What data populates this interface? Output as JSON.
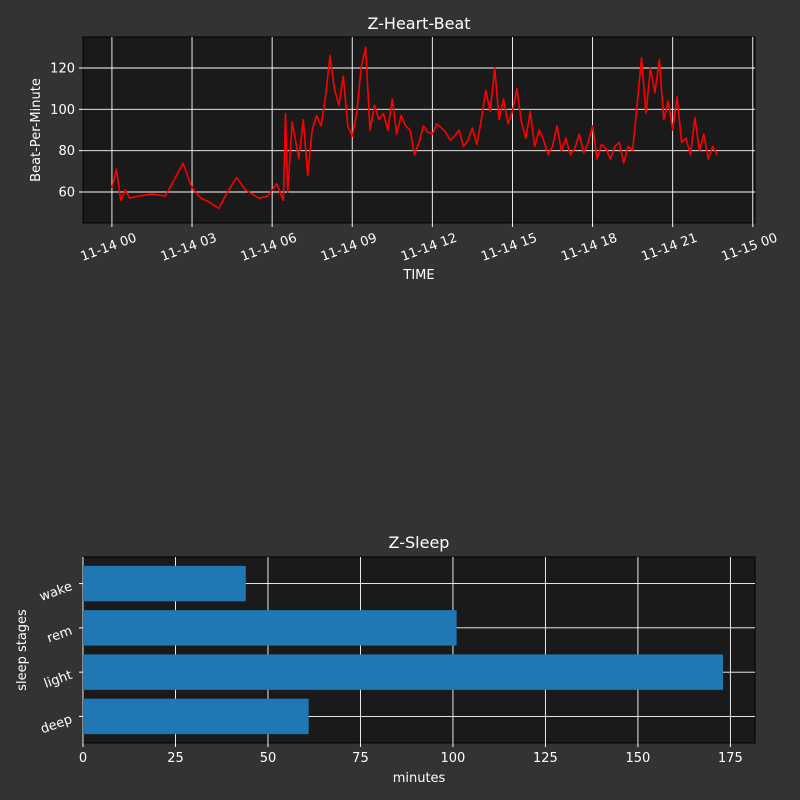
{
  "colors": {
    "figure_background": "#333333",
    "axes_background": "#1a1a1a",
    "grid": "#ffffff",
    "heart_line": "#ff0000",
    "sleep_bar": "#1f77b4",
    "text": "#ffffff"
  },
  "chart_data": [
    {
      "type": "line",
      "title": "Z-Heart-Beat",
      "xlabel": "TIME",
      "ylabel": "Beat-Per-Minute",
      "x_ticks": [
        "11-14 00",
        "11-14 03",
        "11-14 06",
        "11-14 09",
        "11-14 12",
        "11-14 15",
        "11-14 18",
        "11-14 21",
        "11-15 00"
      ],
      "y_ticks": [
        "60",
        "80",
        "100",
        "120"
      ],
      "xlim": [
        "2024-11-13 22:55",
        "2024-11-15 00:05"
      ],
      "ylim": [
        45,
        135
      ],
      "grid": true,
      "series": [
        {
          "color": "#ff0000",
          "x": [
            "00:00",
            "00:10",
            "00:20",
            "00:30",
            "00:40",
            "01:00",
            "01:30",
            "02:00",
            "02:20",
            "02:40",
            "03:00",
            "03:20",
            "03:40",
            "04:00",
            "04:20",
            "04:40",
            "05:00",
            "05:30",
            "05:50",
            "06:10",
            "06:25",
            "06:30",
            "06:35",
            "06:45",
            "07:00",
            "07:10",
            "07:20",
            "07:30",
            "07:40",
            "07:50",
            "08:00",
            "08:10",
            "08:20",
            "08:30",
            "08:40",
            "08:50",
            "09:00",
            "09:10",
            "09:20",
            "09:30",
            "09:40",
            "09:50",
            "10:00",
            "10:10",
            "10:20",
            "10:30",
            "10:40",
            "10:50",
            "11:00",
            "11:10",
            "11:20",
            "11:30",
            "11:40",
            "11:50",
            "12:00",
            "12:10",
            "12:20",
            "12:30",
            "12:40",
            "12:50",
            "13:00",
            "13:10",
            "13:20",
            "13:30",
            "13:40",
            "13:50",
            "14:00",
            "14:10",
            "14:20",
            "14:30",
            "14:40",
            "14:50",
            "15:00",
            "15:10",
            "15:20",
            "15:30",
            "15:40",
            "15:50",
            "16:00",
            "16:10",
            "16:20",
            "16:30",
            "16:40",
            "16:50",
            "17:00",
            "17:10",
            "17:20",
            "17:30",
            "17:40",
            "17:50",
            "18:00",
            "18:10",
            "18:20",
            "18:30",
            "18:40",
            "18:50",
            "19:00",
            "19:10",
            "19:20",
            "19:30",
            "19:40",
            "19:50",
            "20:00",
            "20:10",
            "20:20",
            "20:30",
            "20:40",
            "20:50",
            "21:00",
            "21:10",
            "21:20",
            "21:30",
            "21:40",
            "21:50",
            "22:00",
            "22:10",
            "22:20",
            "22:30",
            "22:40"
          ],
          "values": [
            62,
            71,
            56,
            61,
            57,
            58,
            59,
            58,
            66,
            74,
            62,
            57,
            55,
            52,
            60,
            67,
            61,
            57,
            58,
            64,
            56,
            98,
            60,
            94,
            76,
            95,
            68,
            90,
            97,
            92,
            106,
            126,
            110,
            102,
            116,
            92,
            87,
            98,
            120,
            130,
            90,
            102,
            95,
            98,
            90,
            105,
            88,
            97,
            92,
            90,
            78,
            84,
            92,
            89,
            88,
            93,
            91,
            89,
            85,
            87,
            90,
            82,
            85,
            91,
            83,
            95,
            109,
            99,
            120,
            95,
            105,
            93,
            99,
            110,
            94,
            86,
            99,
            82,
            90,
            85,
            78,
            82,
            92,
            80,
            86,
            78,
            81,
            88,
            79,
            84,
            92,
            76,
            83,
            81,
            76,
            82,
            84,
            74,
            82,
            80,
            102,
            125,
            98,
            120,
            108,
            124,
            95,
            104,
            90,
            106,
            84,
            86,
            78,
            96,
            80,
            88,
            76,
            82,
            78
          ]
        }
      ]
    },
    {
      "type": "bar",
      "orientation": "horizontal",
      "title": "Z-Sleep",
      "xlabel": "minutes",
      "ylabel": "sleep stages",
      "categories": [
        "deep",
        "light",
        "rem",
        "wake"
      ],
      "values": [
        61,
        173,
        101,
        44
      ],
      "x_ticks": [
        "0",
        "25",
        "50",
        "75",
        "100",
        "125",
        "150",
        "175"
      ],
      "xlim": [
        0,
        181.65
      ],
      "grid": true,
      "color": "#1f77b4"
    }
  ]
}
